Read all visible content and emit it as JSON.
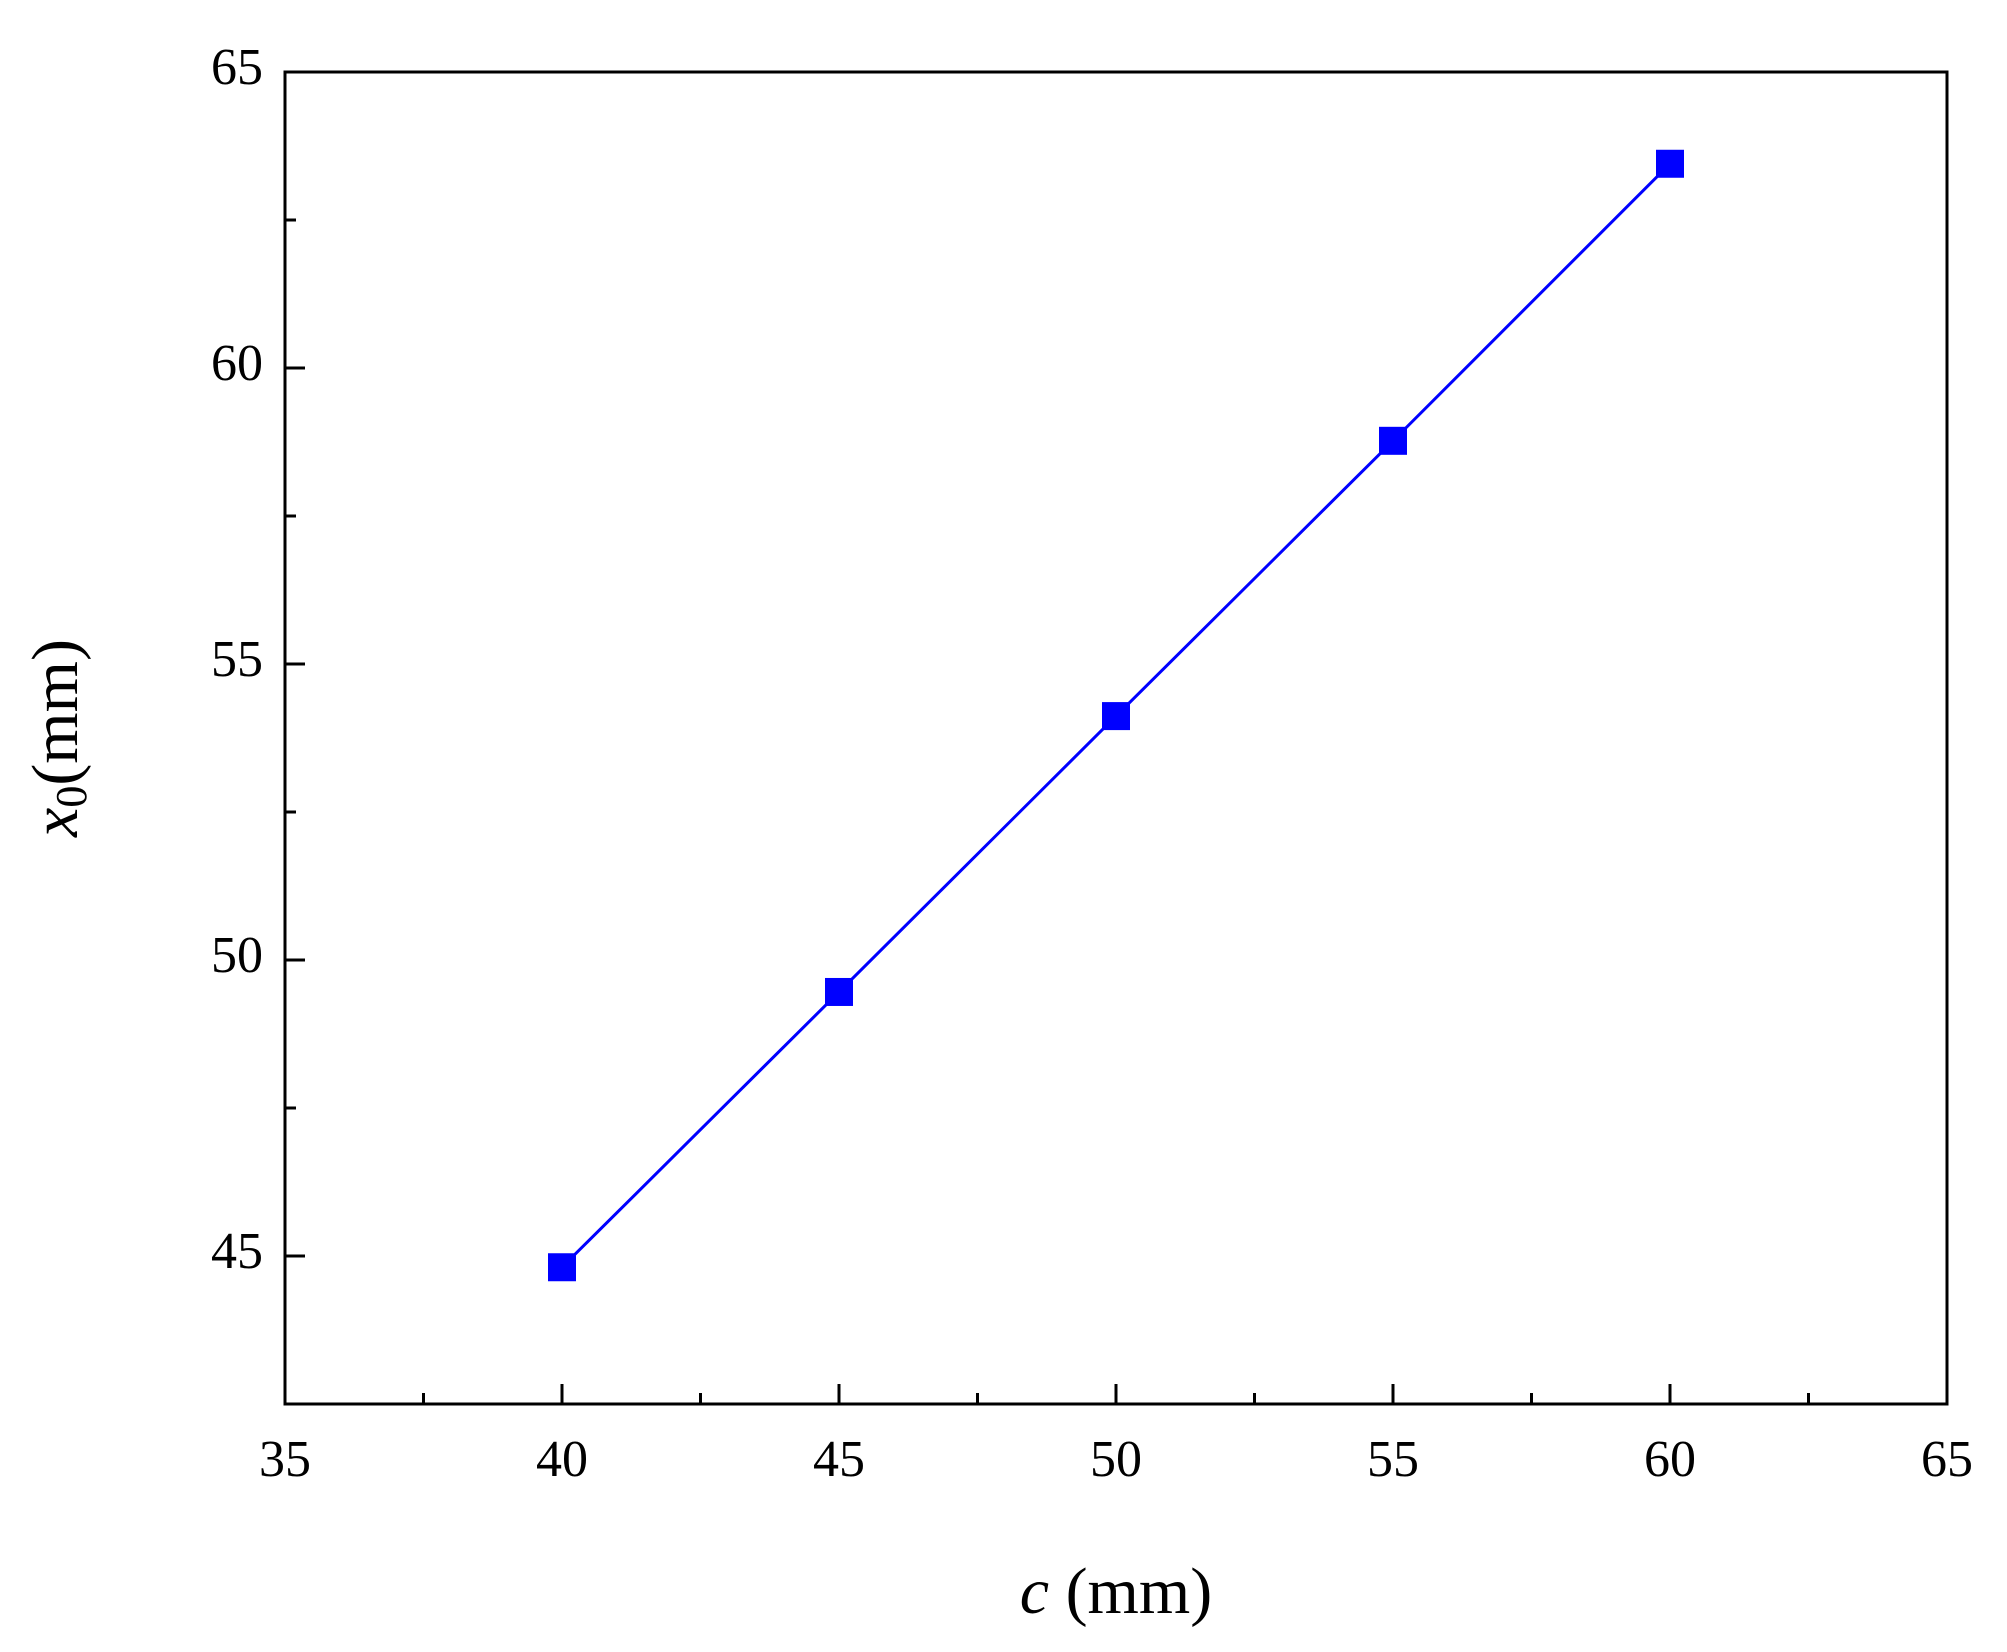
{
  "chart_data": {
    "type": "line",
    "xlabel_var": "c",
    "xlabel_unit": "(mm)",
    "ylabel_var": "x",
    "ylabel_sub": "0",
    "ylabel_unit": "(mm)",
    "x": [
      40,
      45,
      50,
      55,
      60
    ],
    "series": [
      {
        "name": "x0",
        "color": "#0000ff",
        "values": [
          44.81,
          49.46,
          54.12,
          58.77,
          63.45
        ]
      }
    ],
    "xlim": [
      35,
      65
    ],
    "xticks": [
      35,
      40,
      45,
      50,
      55,
      60,
      65
    ],
    "xminorticks": [
      37.5,
      42.5,
      47.5,
      52.5,
      57.5,
      62.5
    ],
    "ylim": [
      42.5,
      65
    ],
    "yticks": [
      45,
      50,
      55,
      60,
      65
    ],
    "yminorticks": [
      47.5,
      52.5,
      57.5,
      62.5
    ],
    "grid": false,
    "marker": "square"
  }
}
